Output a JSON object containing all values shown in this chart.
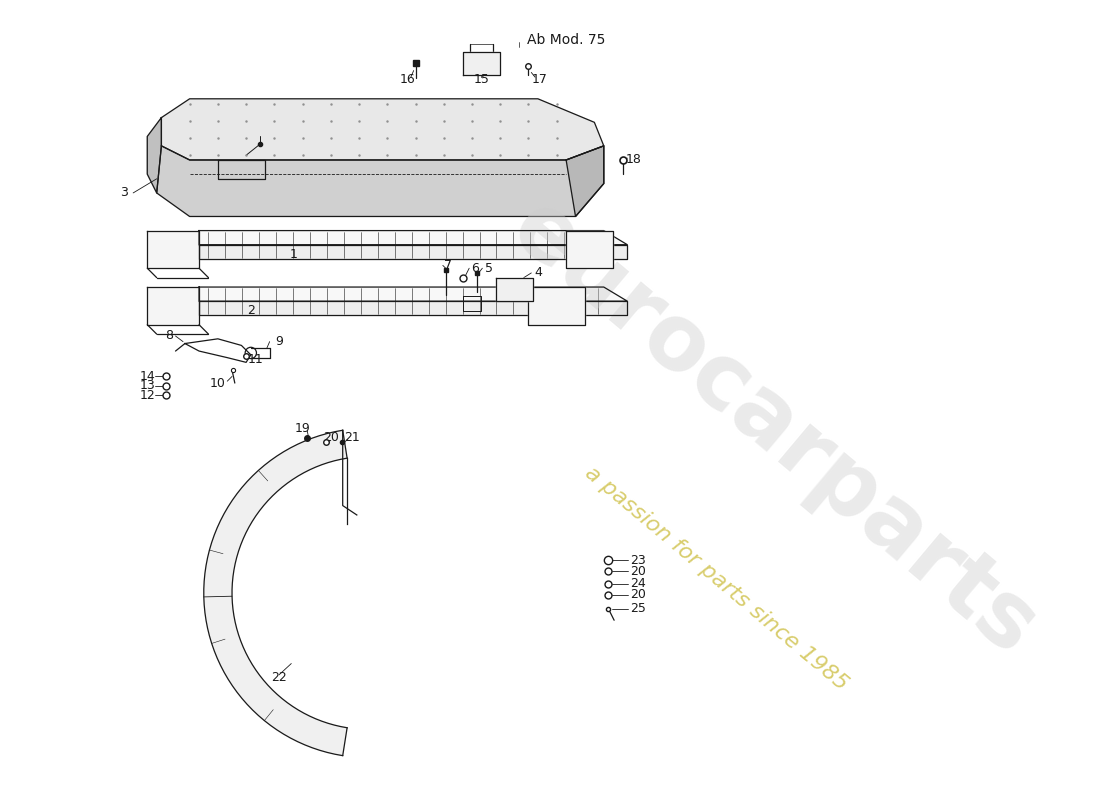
{
  "title": "Ab Mod. 75",
  "background_color": "#ffffff",
  "line_color": "#1a1a1a",
  "watermark_text1": "eurocarparts",
  "watermark_text2": "a passion for parts since 1985",
  "watermark_color1": "#cccccc",
  "watermark_color2": "#c8b830",
  "label_fontsize": 9,
  "title_fontsize": 10
}
